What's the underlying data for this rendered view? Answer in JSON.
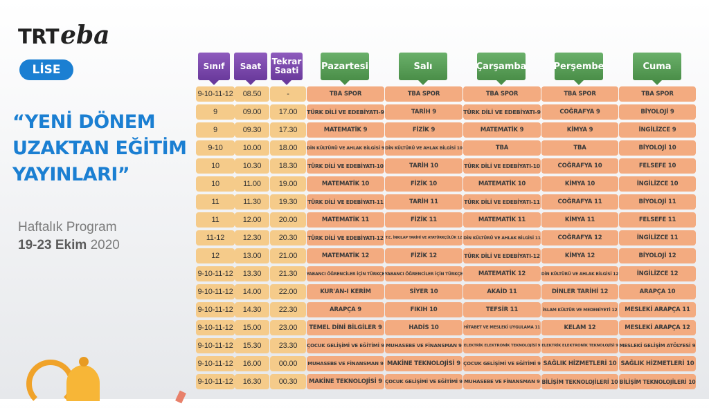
{
  "brand": {
    "trt": "TRT",
    "eba": "eba",
    "level": "LİSE"
  },
  "headline": {
    "line1": "“YENİ DÖNEM",
    "line2": "UZAKTAN EĞİTİM",
    "line3": "YAYINLARI”"
  },
  "subtitle": {
    "program": "Haftalık Program",
    "dates_bold": "19-23 Ekim",
    "year": "2020"
  },
  "columns": {
    "sinif": "Sınıf",
    "saat": "Saat",
    "tekrar_line1": "Tekrar",
    "tekrar_line2": "Saati",
    "days": [
      "Pazartesi",
      "Salı",
      "Çarşamba",
      "Perşembe",
      "Cuma"
    ]
  },
  "rows": [
    [
      "9-10-11-12",
      "08.50",
      "-",
      "TBA SPOR",
      "TBA SPOR",
      "TBA SPOR",
      "TBA SPOR",
      "TBA SPOR"
    ],
    [
      "9",
      "09.00",
      "17.00",
      "TÜRK DİLİ VE EDEBİYATI-9",
      "TARİH 9",
      "TÜRK DİLİ VE EDEBİYATI-9",
      "COĞRAFYA 9",
      "BİYOLOJİ 9"
    ],
    [
      "9",
      "09.30",
      "17.30",
      "MATEMATİK 9",
      "FİZİK 9",
      "MATEMATİK 9",
      "KİMYA 9",
      "İNGİLİZCE 9"
    ],
    [
      "9-10",
      "10.00",
      "18.00",
      "DİN KÜLTÜRÜ VE AHLAK BİLGİSİ 9",
      "DİN KÜLTÜRÜ VE AHLAK BİLGİSİ 10",
      "TBA",
      "TBA",
      "BİYOLOJİ 10"
    ],
    [
      "10",
      "10.30",
      "18.30",
      "TÜRK DİLİ VE EDEBİYATI-10",
      "TARİH 10",
      "TÜRK DİLİ VE EDEBİYATI-10",
      "COĞRAFYA 10",
      "FELSEFE 10"
    ],
    [
      "10",
      "11.00",
      "19.00",
      "MATEMATİK 10",
      "FİZİK 10",
      "MATEMATİK 10",
      "KİMYA 10",
      "İNGİLİZCE 10"
    ],
    [
      "11",
      "11.30",
      "19.30",
      "TÜRK DİLİ VE EDEBİYATI-11",
      "TARİH 11",
      "TÜRK DİLİ VE EDEBİYATI-11",
      "COĞRAFYA 11",
      "BİYOLOJİ 11"
    ],
    [
      "11",
      "12.00",
      "20.00",
      "MATEMATİK 11",
      "FİZİK 11",
      "MATEMATİK 11",
      "KİMYA 11",
      "FELSEFE 11"
    ],
    [
      "11-12",
      "12.30",
      "20.30",
      "TÜRK DİLİ VE EDEBİYATI-12",
      "T.C. İNKILAP TARİHİ VE ATATÜRKÇÜLÜK 12",
      "DİN KÜLTÜRÜ VE AHLAK BİLGİSİ 11",
      "COĞRAFYA 12",
      "İNGİLİZCE 11"
    ],
    [
      "12",
      "13.00",
      "21.00",
      "MATEMATİK 12",
      "FİZİK 12",
      "TÜRK DİLİ VE EDEBİYATI-12",
      "KİMYA 12",
      "BİYOLOJİ 12"
    ],
    [
      "9-10-11-12",
      "13.30",
      "21.30",
      "YABANCI ÖĞRENCİLER İÇİN TÜRKÇE",
      "YABANCI ÖĞRENCİLER İÇİN TÜRKÇE",
      "MATEMATİK 12",
      "DİN KÜLTÜRÜ VE AHLAK BİLGİSİ 12",
      "İNGİLİZCE 12"
    ],
    [
      "9-10-11-12",
      "14.00",
      "22.00",
      "KUR'AN-I KERİM",
      "SİYER 10",
      "AKAİD 11",
      "DİNLER TARİHİ 12",
      "ARAPÇA 10"
    ],
    [
      "9-10-11-12",
      "14.30",
      "22.30",
      "ARAPÇA 9",
      "FIKIH 10",
      "TEFSİR 11",
      "İSLAM KÜLTÜR VE MEDENİYETİ 12",
      "MESLEKİ ARAPÇA 11"
    ],
    [
      "9-10-11-12",
      "15.00",
      "23.00",
      "TEMEL DİNİ BİLGİLER 9",
      "HADİS 10",
      "HİTABET VE MESLEKİ UYGULAMA 11",
      "KELAM 12",
      "MESLEKİ ARAPÇA 12"
    ],
    [
      "9-10-11-12",
      "15.30",
      "23.30",
      "ÇOCUK GELİŞİMİ VE EĞİTİMİ 9",
      "MUHASEBE VE FİNANSMAN 9",
      "ELEKTRİK ELEKTRONİK TEKNOLOJİSİ 9",
      "ELEKTRİK ELEKTRONİK TEKNOLOJİSİ 9",
      "MESLEKİ GELİŞİM ATÖLYESİ 9"
    ],
    [
      "9-10-11-12",
      "16.00",
      "00.00",
      "MUHASEBE VE FİNANSMAN 9",
      "MAKİNE TEKNOLOJİSİ 9",
      "ÇOCUK GELİŞİMİ VE EĞİTİMİ 9",
      "SAĞLIK HİZMETLERİ 10",
      "SAĞLIK HİZMETLERİ 10"
    ],
    [
      "9-10-11-12",
      "16.30",
      "00.30",
      "MAKİNE TEKNOLOJİSİ 9",
      "ÇOCUK GELİŞİMİ VE EĞİTİMİ 9",
      "MUHASEBE VE FİNANSMAN 9",
      "BİLİŞİM TEKNOLOJİLERİ 10",
      "BİLİŞİM TEKNOLOJİLERİ 10"
    ]
  ],
  "colors": {
    "accent_blue": "#1b7fd2",
    "header_purple": "#7a48ab",
    "header_green": "#58a056",
    "info_cell": "#f5cb8a",
    "subject_cell": "#f3ab80"
  }
}
